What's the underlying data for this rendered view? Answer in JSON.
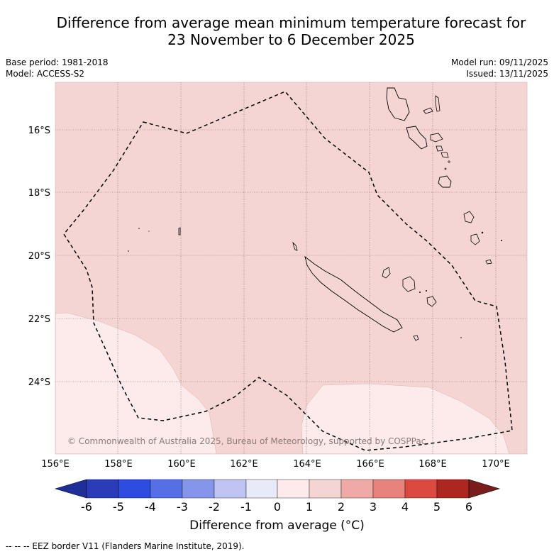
{
  "title": {
    "line1": "Difference from average mean minimum temperature forecast for",
    "line2": "23 November to 6 December 2025"
  },
  "meta": {
    "base_period": "Base period: 1981-2018",
    "model": "Model: ACCESS-S2",
    "model_run": "Model run: 09/11/2025",
    "issued": "Issued: 13/11/2025"
  },
  "map": {
    "lon_labels": [
      "156°E",
      "158°E",
      "160°E",
      "162°E",
      "164°E",
      "166°E",
      "168°E",
      "170°E"
    ],
    "lat_labels": [
      "16°S",
      "18°S",
      "20°S",
      "22°S",
      "24°S"
    ],
    "copyright": "© Commonwealth of Australia 2025, Bureau of Meteorology, supported by COSPPac",
    "colors": {
      "warm_1_2": "#f5d5d3",
      "warm_0_1": "#fcebea",
      "grid": "#7a6a6a"
    }
  },
  "colorbar": {
    "ticks": [
      "-6",
      "-5",
      "-4",
      "-3",
      "-2",
      "-1",
      "0",
      "1",
      "2",
      "3",
      "4",
      "5",
      "6"
    ],
    "colors": [
      "#1f2f9a",
      "#2a3cb8",
      "#2e4ce0",
      "#5570e4",
      "#8495eb",
      "#bfc4f2",
      "#e8eaf9",
      "#fdeaea",
      "#f5d5d3",
      "#efaaa6",
      "#e8827c",
      "#db4a40",
      "#ad2721",
      "#7a1d1a"
    ],
    "title": "Difference from average (°C)"
  },
  "footer": "--  --  -- EEZ border V11 (Flanders Marine Institute, 2019)."
}
